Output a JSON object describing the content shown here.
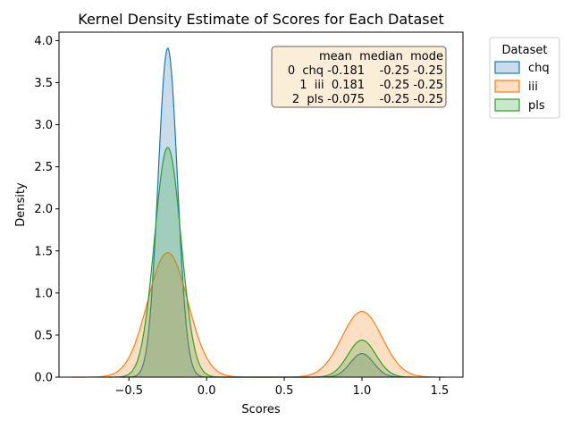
{
  "chart_data": {
    "type": "area",
    "title": "Kernel Density Estimate of Scores for Each Dataset",
    "xlabel": "Scores",
    "ylabel": "Density",
    "xlim": [
      -0.95,
      1.65
    ],
    "ylim": [
      0,
      4.1
    ],
    "x_ticks": [
      -0.5,
      0.0,
      0.5,
      1.0,
      1.5
    ],
    "x_tick_labels": [
      "−0.5",
      "0.0",
      "0.5",
      "1.0",
      "1.5"
    ],
    "y_ticks": [
      0.0,
      0.5,
      1.0,
      1.5,
      2.0,
      2.5,
      3.0,
      3.5,
      4.0
    ],
    "y_tick_labels": [
      "0.0",
      "0.5",
      "1.0",
      "1.5",
      "2.0",
      "2.5",
      "3.0",
      "3.5",
      "4.0"
    ],
    "grid": false,
    "legend": {
      "title": "Dataset",
      "placement": "outside-top-right",
      "entries": [
        "chq",
        "iii",
        "pls"
      ]
    },
    "series": [
      {
        "name": "chq",
        "color": "#1f77b4",
        "components": [
          {
            "mean": -0.25,
            "sd": 0.062,
            "peak": 3.91
          },
          {
            "mean": 1.0,
            "sd": 0.075,
            "peak": 0.28
          }
        ],
        "x_range": [
          -0.55,
          1.25
        ]
      },
      {
        "name": "iii",
        "color": "#ff7f0e",
        "components": [
          {
            "mean": -0.25,
            "sd": 0.13,
            "peak": 1.48
          },
          {
            "mean": 1.0,
            "sd": 0.13,
            "peak": 0.78
          }
        ],
        "x_range": [
          -0.87,
          1.53
        ]
      },
      {
        "name": "pls",
        "color": "#2ca02c",
        "components": [
          {
            "mean": -0.25,
            "sd": 0.085,
            "peak": 2.73
          },
          {
            "mean": 1.0,
            "sd": 0.09,
            "peak": 0.44
          }
        ],
        "x_range": [
          -0.63,
          1.33
        ]
      }
    ],
    "stats_table": {
      "header": "    mean  median  mode",
      "rows": [
        "0  chq -0.181    -0.25 -0.25",
        "  1  iii  0.181    -0.25 -0.25",
        "  2  pls -0.075    -0.25 -0.25"
      ]
    }
  }
}
